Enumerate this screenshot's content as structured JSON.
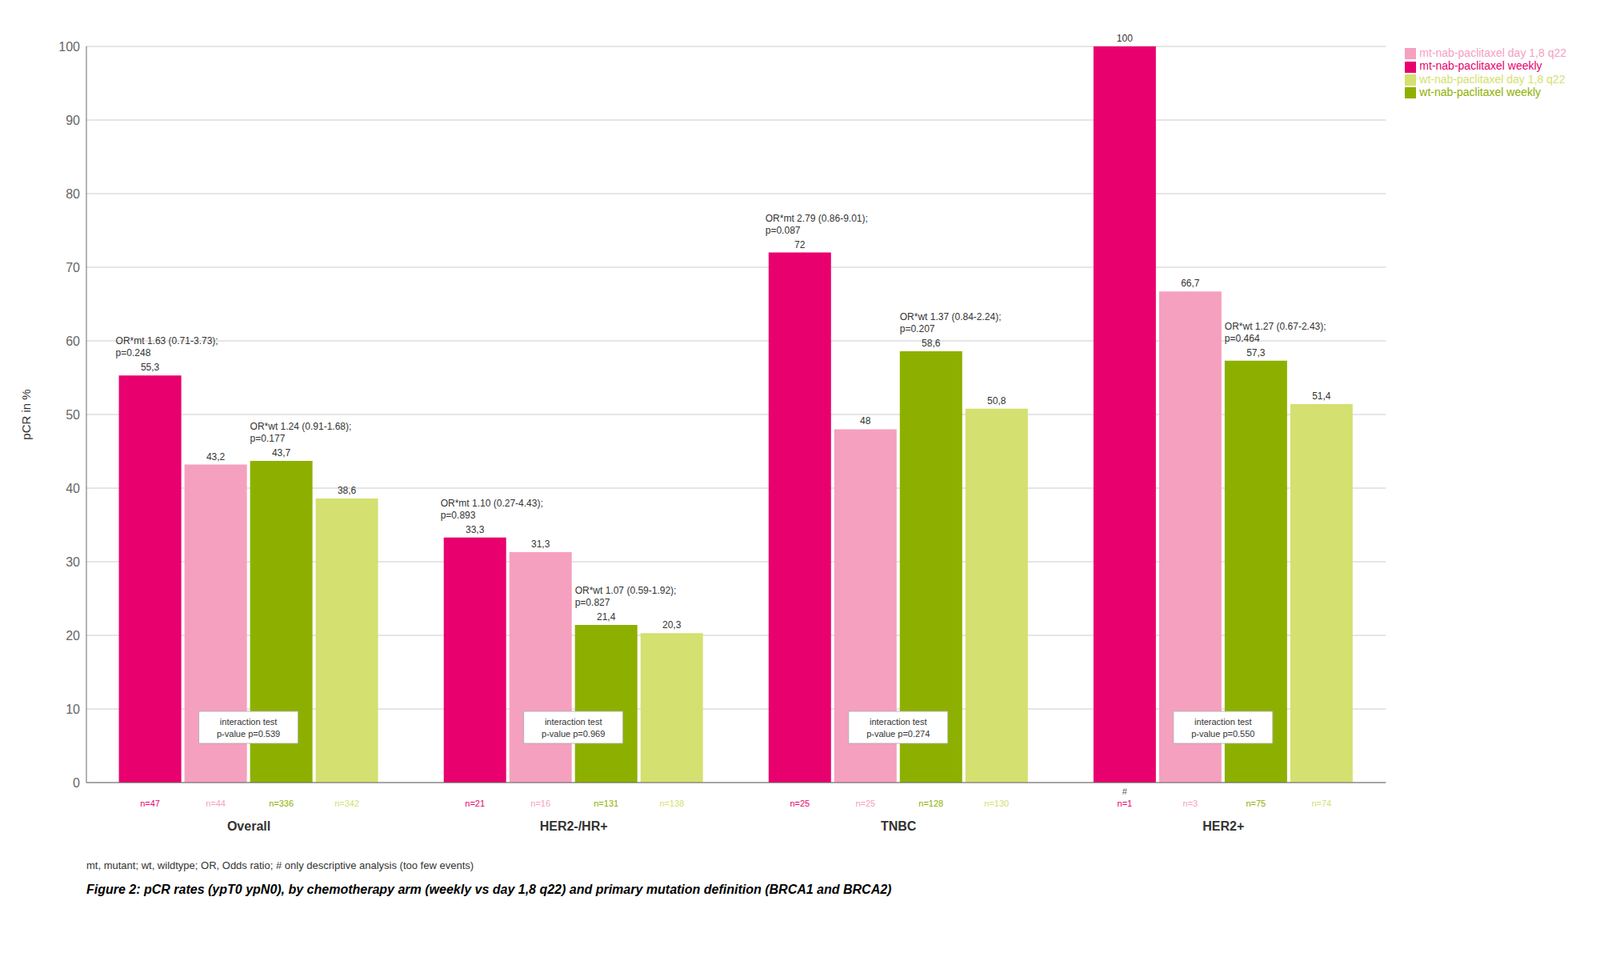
{
  "chart_data": {
    "type": "bar",
    "categories": [
      "Overall",
      "HER2-/HR+",
      "TNBC",
      "HER2+"
    ],
    "series": [
      {
        "name": "mt-nab-paclitaxel weekly",
        "color": "#E8006E",
        "values": [
          55.3,
          33.3,
          72.0,
          100.0
        ],
        "value_labels": [
          "55,3",
          "33,3",
          "72",
          "100"
        ],
        "n_labels": [
          "n=47",
          "n=21",
          "n=25",
          "n=1"
        ]
      },
      {
        "name": "mt-nab-paclitaxel day 1,8 q22",
        "color": "#F5A0BF",
        "values": [
          43.2,
          31.3,
          48.0,
          66.7
        ],
        "value_labels": [
          "43,2",
          "31,3",
          "48",
          "66,7"
        ],
        "n_labels": [
          "n=44",
          "n=16",
          "n=25",
          "n=3"
        ]
      },
      {
        "name": "wt-nab-paclitaxel weekly",
        "color": "#8DB000",
        "values": [
          43.7,
          21.4,
          58.6,
          57.3
        ],
        "value_labels": [
          "43,7",
          "21,4",
          "58,6",
          "57,3"
        ],
        "n_labels": [
          "n=336",
          "n=131",
          "n=128",
          "n=75"
        ]
      },
      {
        "name": "wt-nab-paclitaxel day 1,8 q22",
        "color": "#D4E070",
        "values": [
          38.6,
          20.3,
          50.8,
          51.4
        ],
        "value_labels": [
          "38,6",
          "20,3",
          "50,8",
          "51,4"
        ],
        "n_labels": [
          "n=342",
          "n=138",
          "n=130",
          "n=74"
        ]
      }
    ],
    "data_labels": true,
    "ylabel": "pCR in %",
    "ylim": [
      0,
      100
    ],
    "yticks": [
      0,
      10,
      20,
      30,
      40,
      50,
      60,
      70,
      80,
      90,
      100
    ],
    "grid": true,
    "legend": "upper right",
    "interaction_texts": [
      "interaction test\np-value p=0.539",
      "interaction test\np-value p=0.969",
      "interaction test\np-value p=0.274",
      "interaction test\np-value p=0.550"
    ],
    "or_texts_mt": [
      "OR*mt 1.63 (0.71-3.73);\np=0.248",
      "OR*mt 1.10 (0.27-4.43);\np=0.893",
      "OR*mt 2.79 (0.86-9.01);\np=0.087",
      null
    ],
    "or_texts_wt": [
      "OR*wt 1.24 (0.91-1.68);\np=0.177",
      "OR*wt 1.07 (0.59-1.92);\np=0.827",
      "OR*wt 1.37 (0.84-2.24);\np=0.207",
      "OR*wt 1.27 (0.67-2.43);\np=0.464"
    ],
    "hash_note": {
      "text": "#",
      "category": "HER2+",
      "series": "mt-nab-paclitaxel weekly"
    },
    "footnote": "mt, mutant; wt, wildtype; OR, Odds ratio; # only descriptive analysis (too few events)",
    "caption": "Figure 2: pCR rates (ypT0 ypN0), by chemotherapy arm (weekly vs day 1,8 q22) and primary mutation definition (BRCA1 and BRCA2)"
  }
}
